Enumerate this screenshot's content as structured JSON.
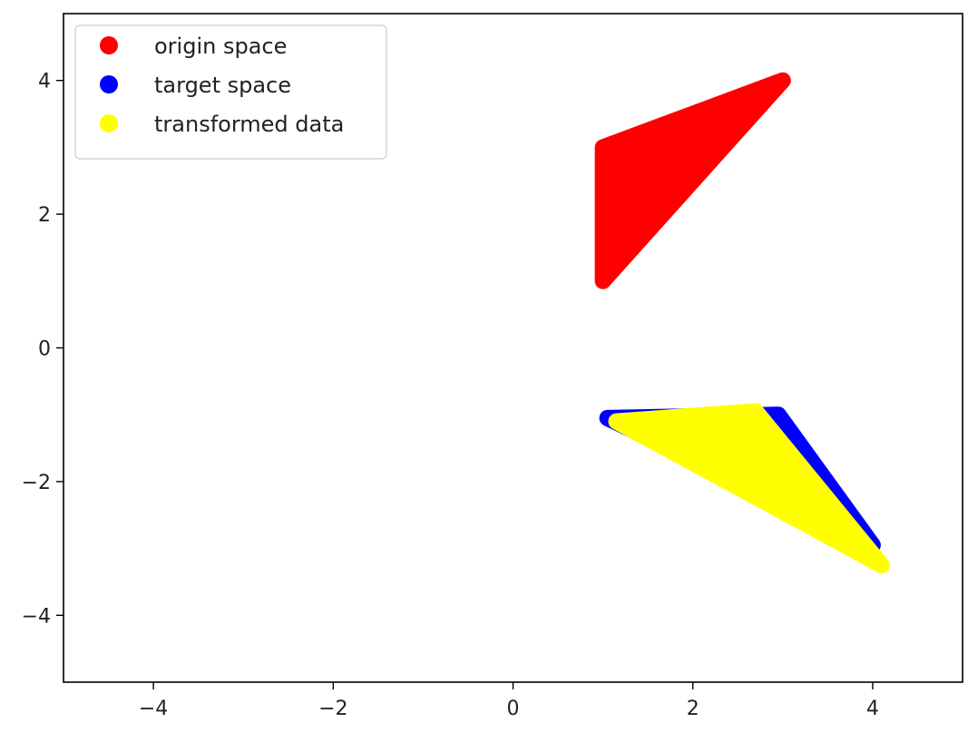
{
  "chart_data": {
    "type": "scatter",
    "title": "",
    "xlabel": "",
    "ylabel": "",
    "xlim": [
      -5,
      5
    ],
    "ylim": [
      -5,
      5
    ],
    "x_ticks": [
      -4,
      -2,
      0,
      2,
      4
    ],
    "y_ticks": [
      -4,
      -2,
      0,
      2,
      4
    ],
    "grid": false,
    "legend_position": "upper-left",
    "series": [
      {
        "name": "origin space",
        "color": "#ff0000",
        "shape": "filled triangle",
        "vertices": [
          [
            1.0,
            1.0
          ],
          [
            1.0,
            3.0
          ],
          [
            3.0,
            4.0
          ]
        ]
      },
      {
        "name": "target space",
        "color": "#0000ff",
        "shape": "filled triangle",
        "vertices": [
          [
            1.05,
            -1.05
          ],
          [
            2.95,
            -1.0
          ],
          [
            4.0,
            -2.95
          ]
        ]
      },
      {
        "name": "transformed data",
        "color": "#ffff00",
        "shape": "filled triangle",
        "vertices": [
          [
            1.15,
            -1.1
          ],
          [
            2.7,
            -0.95
          ],
          [
            4.1,
            -3.25
          ]
        ]
      }
    ]
  }
}
